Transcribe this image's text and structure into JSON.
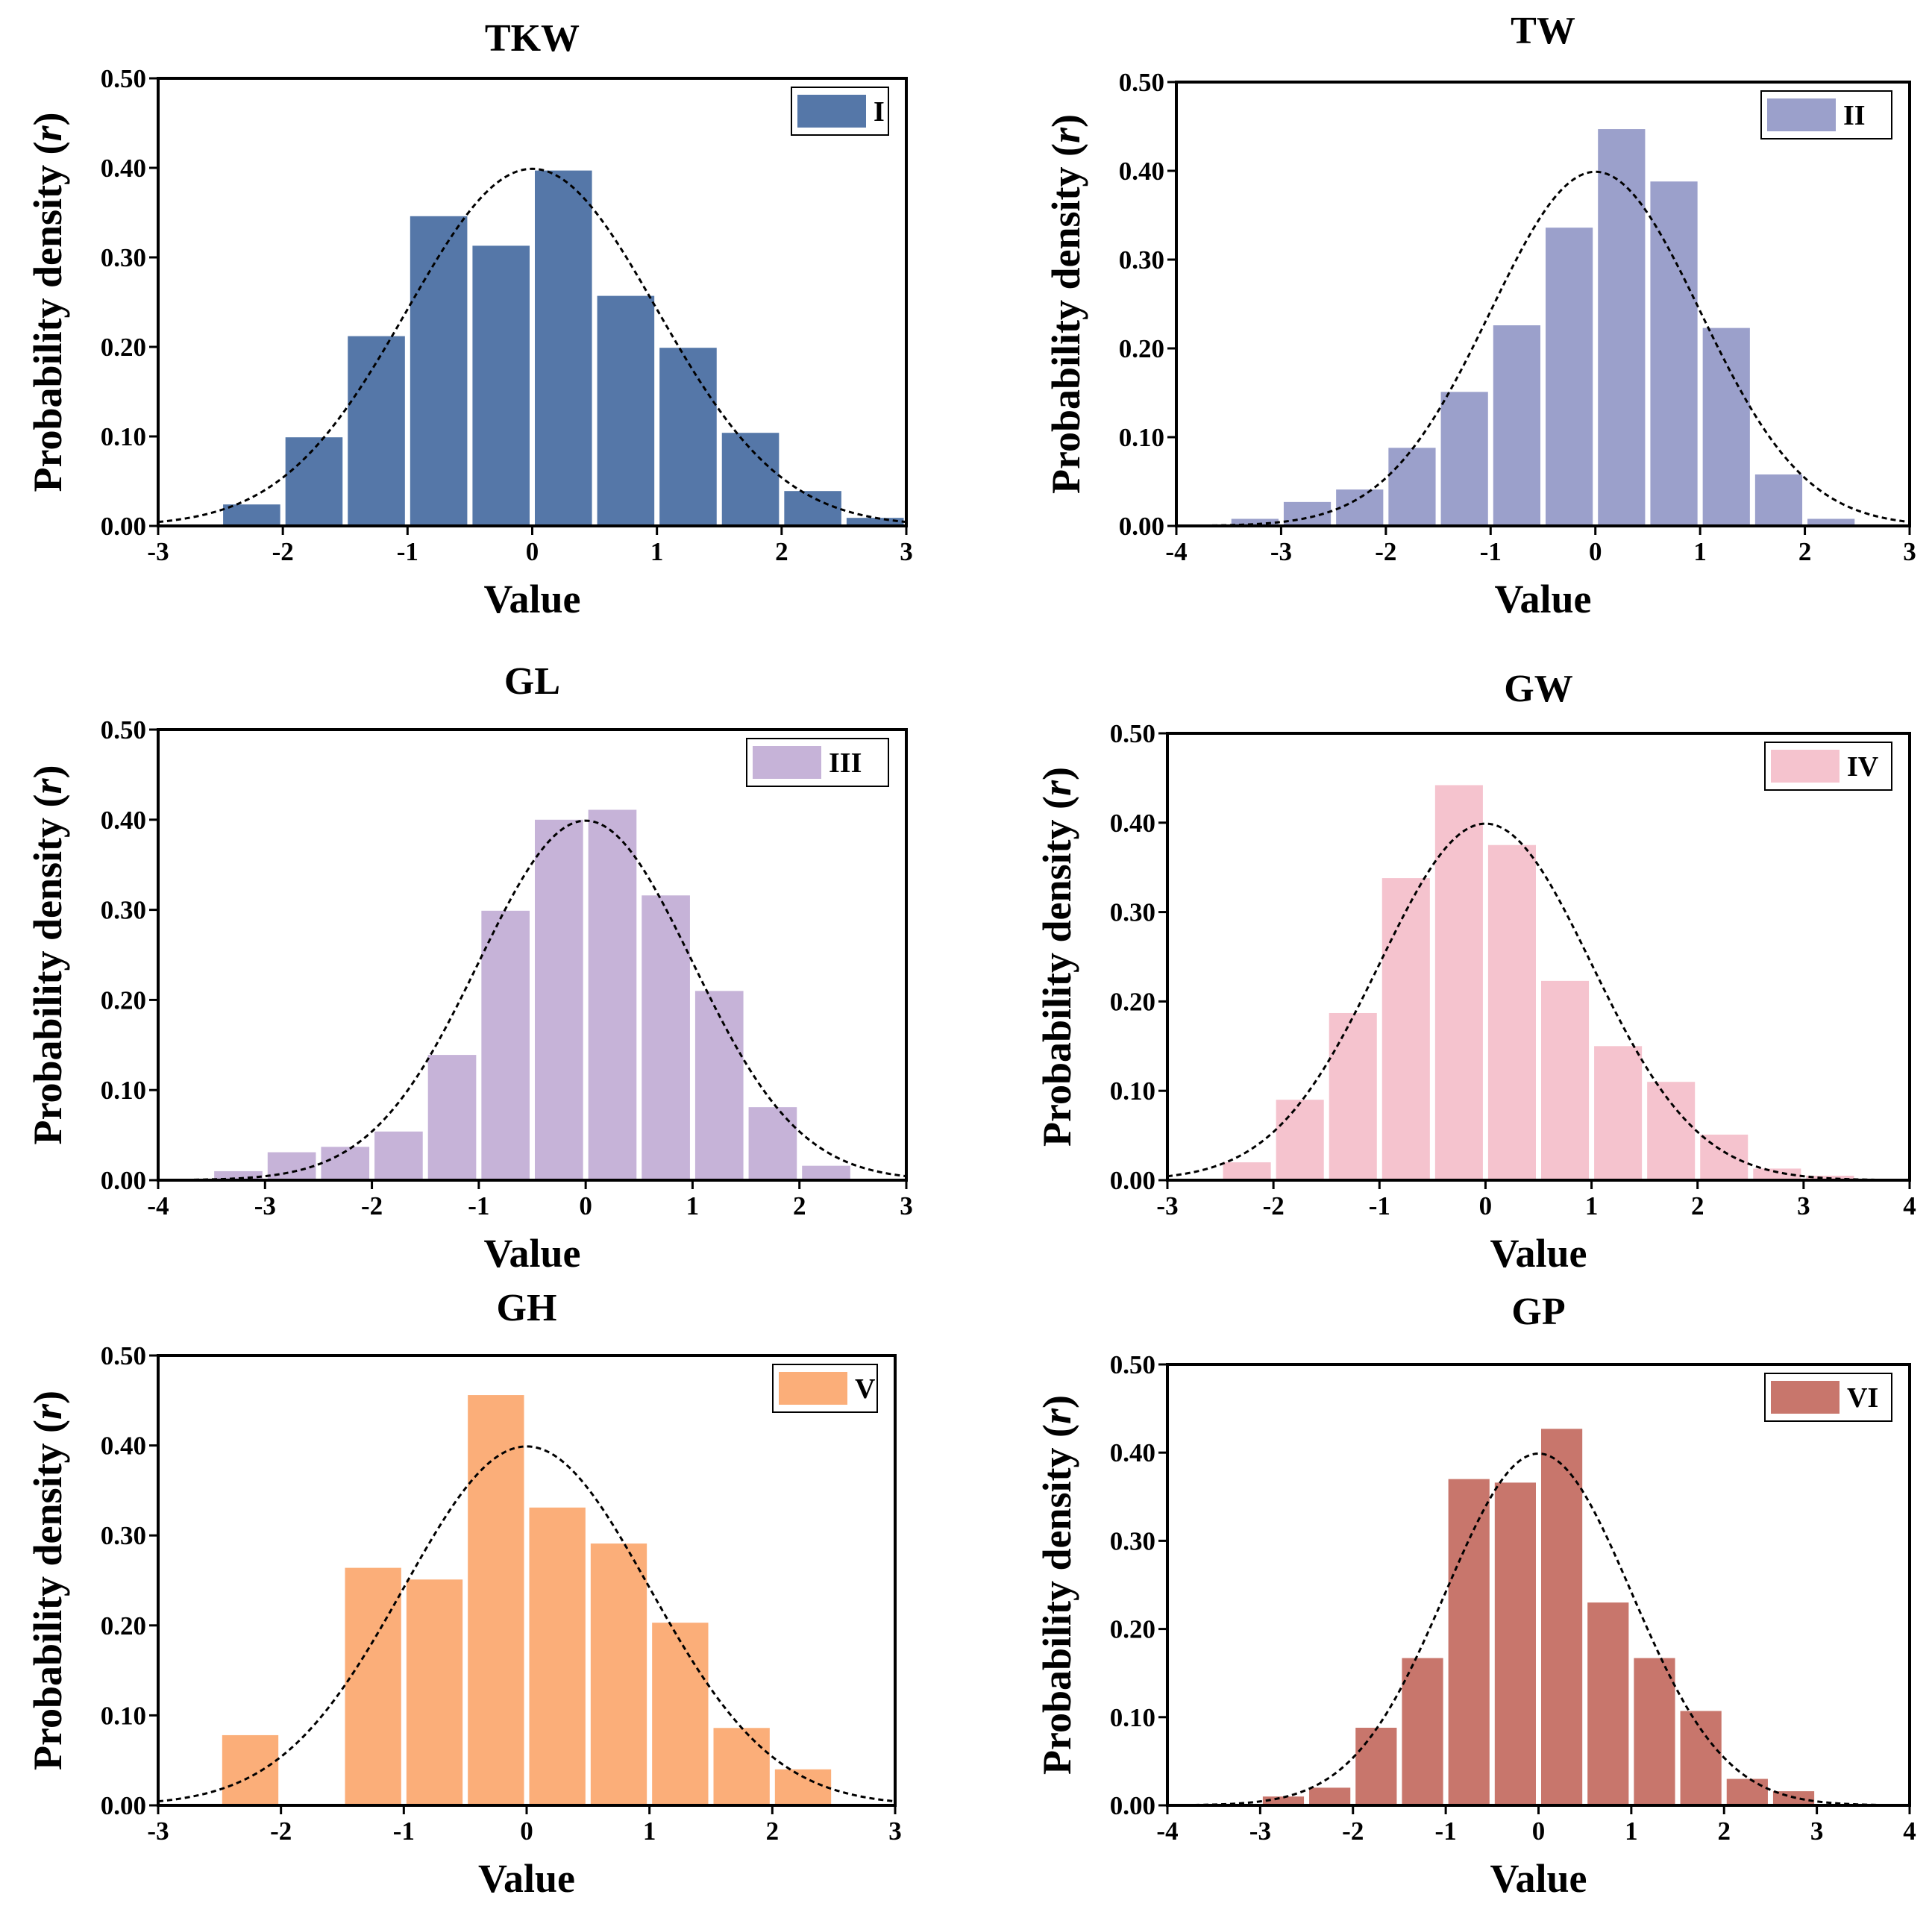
{
  "figure": {
    "y_axis_label": "Probability density",
    "y_axis_symbol": "r",
    "x_axis_label": "Value"
  },
  "chart_data": [
    {
      "type": "bar",
      "title": "TKW",
      "legend": "I",
      "color": "#5577A8",
      "xlabel": "Value",
      "ylabel": "Probability density (r)",
      "xlim": [
        -3,
        3
      ],
      "ylim": [
        0,
        0.5
      ],
      "xticks": [
        "-3",
        "-2",
        "-1",
        "0",
        "1",
        "2",
        "3"
      ],
      "yticks": [
        "0.00",
        "0.10",
        "0.20",
        "0.30",
        "0.40",
        "0.50"
      ],
      "bin_width": 0.5,
      "bin_starts": [
        -2.5,
        -2.0,
        -1.5,
        -1.0,
        -0.5,
        0.0,
        0.5,
        1.0,
        1.5,
        2.0,
        2.5
      ],
      "values": [
        0.024,
        0.099,
        0.212,
        0.346,
        0.313,
        0.397,
        0.257,
        0.199,
        0.104,
        0.039,
        0.009
      ],
      "normal_curve": true
    },
    {
      "type": "bar",
      "title": "TW",
      "legend": "II",
      "color": "#9BA0CB",
      "xlabel": "Value",
      "ylabel": "Probability density (r)",
      "xlim": [
        -4,
        3
      ],
      "ylim": [
        0,
        0.5
      ],
      "xticks": [
        "-4",
        "-3",
        "-2",
        "-1",
        "0",
        "1",
        "2",
        "3"
      ],
      "yticks": [
        "0.00",
        "0.10",
        "0.20",
        "0.30",
        "0.40",
        "0.50"
      ],
      "bin_width": 0.5,
      "bin_starts": [
        -3.5,
        -3.0,
        -2.5,
        -2.0,
        -1.5,
        -1.0,
        -0.5,
        0.0,
        0.5,
        1.0,
        1.5,
        2.0
      ],
      "values": [
        0.008,
        0.027,
        0.041,
        0.088,
        0.151,
        0.226,
        0.336,
        0.447,
        0.388,
        0.223,
        0.058,
        0.008
      ],
      "normal_curve": true
    },
    {
      "type": "bar",
      "title": "GL",
      "legend": "III",
      "color": "#C6B3D8",
      "xlabel": "Value",
      "ylabel": "Probability density (r)",
      "xlim": [
        -4,
        3
      ],
      "ylim": [
        0,
        0.5
      ],
      "xticks": [
        "-4",
        "-3",
        "-2",
        "-1",
        "0",
        "1",
        "2",
        "3"
      ],
      "yticks": [
        "0.00",
        "0.10",
        "0.20",
        "0.30",
        "0.40",
        "0.50"
      ],
      "bin_width": 0.5,
      "bin_starts": [
        -3.5,
        -3.0,
        -2.5,
        -2.0,
        -1.5,
        -1.0,
        -0.5,
        0.0,
        0.5,
        1.0,
        1.5,
        2.0
      ],
      "values": [
        0.01,
        0.031,
        0.037,
        0.054,
        0.139,
        0.299,
        0.4,
        0.411,
        0.316,
        0.21,
        0.081,
        0.016
      ],
      "normal_curve": true
    },
    {
      "type": "bar",
      "title": "GW",
      "legend": "IV",
      "color": "#F5C3CE",
      "xlabel": "Value",
      "ylabel": "Probability density (r)",
      "xlim": [
        -3,
        4
      ],
      "ylim": [
        0,
        0.5
      ],
      "xticks": [
        "-3",
        "-2",
        "-1",
        "0",
        "1",
        "2",
        "3",
        "4"
      ],
      "yticks": [
        "0.00",
        "0.10",
        "0.20",
        "0.30",
        "0.40",
        "0.50"
      ],
      "bin_width": 0.5,
      "bin_starts": [
        -2.5,
        -2.0,
        -1.5,
        -1.0,
        -0.5,
        0.0,
        0.5,
        1.0,
        1.5,
        2.0,
        2.5,
        3.0
      ],
      "values": [
        0.02,
        0.09,
        0.187,
        0.338,
        0.442,
        0.375,
        0.223,
        0.15,
        0.11,
        0.051,
        0.013,
        0.005
      ],
      "normal_curve": true
    },
    {
      "type": "bar",
      "title": "GH",
      "legend": "V",
      "color": "#FBAE79",
      "xlabel": "Value",
      "ylabel": "Probability density (r)",
      "xlim": [
        -3,
        3
      ],
      "ylim": [
        0,
        0.5
      ],
      "xticks": [
        "-3",
        "-2",
        "-1",
        "0",
        "1",
        "2",
        "3"
      ],
      "yticks": [
        "0.00",
        "0.10",
        "0.20",
        "0.30",
        "0.40",
        "0.50"
      ],
      "bin_width": 0.5,
      "bin_starts": [
        -2.5,
        -2.0,
        -1.5,
        -1.0,
        -0.5,
        0.0,
        0.5,
        1.0,
        1.5,
        2.0
      ],
      "values": [
        0.078,
        0.0,
        0.264,
        0.251,
        0.456,
        0.331,
        0.291,
        0.203,
        0.086,
        0.04
      ],
      "normal_curve": true
    },
    {
      "type": "bar",
      "title": "GP",
      "legend": "VI",
      "color": "#C8766C",
      "xlabel": "Value",
      "ylabel": "Probability density (r)",
      "xlim": [
        -4,
        4
      ],
      "ylim": [
        0,
        0.5
      ],
      "xticks": [
        "-4",
        "-3",
        "-2",
        "-1",
        "0",
        "1",
        "2",
        "3",
        "4"
      ],
      "yticks": [
        "0.00",
        "0.10",
        "0.20",
        "0.30",
        "0.40",
        "0.50"
      ],
      "bin_width": 0.5,
      "bin_starts": [
        -3.0,
        -2.5,
        -2.0,
        -1.5,
        -1.0,
        -0.5,
        0.0,
        0.5,
        1.0,
        1.5,
        2.0,
        2.5
      ],
      "values": [
        0.01,
        0.02,
        0.088,
        0.167,
        0.37,
        0.366,
        0.427,
        0.23,
        0.167,
        0.107,
        0.03,
        0.016
      ],
      "normal_curve": true
    }
  ]
}
